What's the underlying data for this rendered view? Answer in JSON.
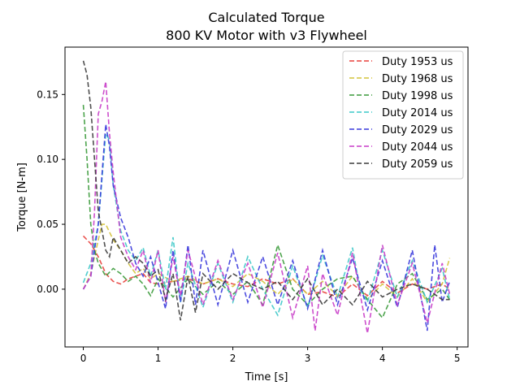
{
  "chart_data": {
    "type": "line",
    "title": "Calculated Torque",
    "subtitle": "800 KV Motor with v3 Flywheel",
    "xlabel": "Time [s]",
    "ylabel": "Torque [N-m]",
    "xlim": [
      -0.245,
      5.145
    ],
    "ylim": [
      -0.0445,
      0.1865
    ],
    "xticks": [
      0,
      1,
      2,
      3,
      4,
      5
    ],
    "xtick_labels": [
      "0",
      "1",
      "2",
      "3",
      "4",
      "5"
    ],
    "yticks": [
      0.0,
      0.05,
      0.1,
      0.15
    ],
    "ytick_labels": [
      "0.00",
      "0.05",
      "0.10",
      "0.15"
    ],
    "grid": false,
    "legend_position": "top-right",
    "line_style": "dashed",
    "series": [
      {
        "name": "Duty 1953 us",
        "color": "#e8403c",
        "x": [
          0.0,
          0.1,
          0.2,
          0.3,
          0.4,
          0.5,
          0.6,
          0.7,
          0.8,
          0.9,
          1.0,
          1.2,
          1.4,
          1.6,
          1.8,
          2.0,
          2.2,
          2.4,
          2.6,
          2.8,
          3.0,
          3.2,
          3.4,
          3.6,
          3.8,
          4.0,
          4.2,
          4.4,
          4.6,
          4.8,
          4.9
        ],
        "y": [
          0.041,
          0.035,
          0.025,
          0.012,
          0.006,
          0.004,
          0.008,
          0.01,
          0.012,
          0.005,
          0.004,
          0.006,
          0.008,
          0.004,
          0.008,
          0.004,
          0.002,
          0.008,
          0.004,
          0.008,
          -0.004,
          -0.002,
          -0.006,
          0.004,
          -0.005,
          0.006,
          -0.003,
          0.004,
          0.0,
          0.004,
          0.0
        ]
      },
      {
        "name": "Duty 1968 us",
        "color": "#d4c33c",
        "x": [
          0.0,
          0.1,
          0.2,
          0.25,
          0.3,
          0.4,
          0.5,
          0.6,
          0.7,
          0.8,
          0.9,
          1.0,
          1.2,
          1.4,
          1.6,
          1.8,
          2.0,
          2.2,
          2.4,
          2.6,
          2.8,
          3.0,
          3.2,
          3.4,
          3.6,
          3.8,
          4.0,
          4.2,
          4.4,
          4.6,
          4.8,
          4.9
        ],
        "y": [
          0.0,
          0.012,
          0.038,
          0.05,
          0.05,
          0.038,
          0.03,
          0.02,
          0.012,
          0.016,
          0.008,
          0.012,
          0.006,
          0.01,
          0.004,
          0.008,
          0.002,
          0.012,
          0.006,
          -0.004,
          0.008,
          -0.004,
          0.006,
          -0.005,
          0.01,
          -0.008,
          0.004,
          -0.006,
          0.008,
          -0.01,
          0.004,
          0.024
        ]
      },
      {
        "name": "Duty 1998 us",
        "color": "#3a9a3a",
        "x": [
          0.0,
          0.05,
          0.1,
          0.15,
          0.2,
          0.3,
          0.4,
          0.5,
          0.6,
          0.7,
          0.8,
          0.9,
          1.0,
          1.2,
          1.4,
          1.6,
          1.8,
          2.0,
          2.2,
          2.4,
          2.6,
          2.8,
          3.0,
          3.2,
          3.4,
          3.6,
          3.8,
          4.0,
          4.2,
          4.4,
          4.6,
          4.8,
          4.9
        ],
        "y": [
          0.142,
          0.1,
          0.05,
          0.03,
          0.02,
          0.01,
          0.016,
          0.012,
          0.006,
          0.01,
          0.004,
          -0.005,
          0.008,
          -0.006,
          0.008,
          -0.004,
          0.006,
          -0.004,
          0.006,
          -0.012,
          0.034,
          0.0,
          -0.012,
          0.0,
          0.008,
          0.01,
          -0.008,
          -0.022,
          0.004,
          0.012,
          -0.008,
          0.0,
          -0.008
        ]
      },
      {
        "name": "Duty 2014 us",
        "color": "#3cc8c8",
        "x": [
          0.0,
          0.1,
          0.2,
          0.3,
          0.35,
          0.4,
          0.5,
          0.6,
          0.7,
          0.8,
          0.9,
          1.0,
          1.1,
          1.2,
          1.3,
          1.4,
          1.6,
          1.8,
          2.0,
          2.2,
          2.4,
          2.6,
          2.8,
          3.0,
          3.2,
          3.4,
          3.6,
          3.7,
          3.8,
          4.0,
          4.2,
          4.4,
          4.6,
          4.8,
          4.9
        ],
        "y": [
          0.005,
          0.02,
          0.05,
          0.12,
          0.115,
          0.08,
          0.045,
          0.03,
          0.022,
          0.032,
          0.01,
          0.03,
          0.0,
          0.04,
          -0.01,
          0.02,
          -0.014,
          0.02,
          -0.01,
          0.025,
          0.0,
          -0.02,
          0.018,
          -0.014,
          0.026,
          -0.006,
          0.032,
          0.0,
          -0.01,
          0.03,
          -0.006,
          0.022,
          -0.01,
          0.016,
          -0.008
        ]
      },
      {
        "name": "Duty 2029 us",
        "color": "#3838dc",
        "x": [
          0.0,
          0.1,
          0.2,
          0.3,
          0.35,
          0.4,
          0.5,
          0.6,
          0.7,
          0.8,
          0.9,
          1.0,
          1.1,
          1.2,
          1.3,
          1.4,
          1.5,
          1.6,
          1.8,
          2.0,
          2.2,
          2.4,
          2.6,
          2.8,
          3.0,
          3.2,
          3.4,
          3.6,
          3.8,
          4.0,
          4.2,
          4.4,
          4.6,
          4.7,
          4.8,
          4.9
        ],
        "y": [
          0.0,
          0.01,
          0.05,
          0.127,
          0.11,
          0.08,
          0.055,
          0.04,
          0.02,
          0.01,
          0.025,
          0.005,
          -0.015,
          0.03,
          -0.01,
          0.034,
          -0.012,
          0.03,
          -0.012,
          0.03,
          -0.01,
          0.025,
          -0.012,
          0.022,
          -0.015,
          0.03,
          -0.012,
          0.024,
          -0.016,
          0.022,
          -0.014,
          0.03,
          -0.032,
          0.034,
          -0.01,
          0.006
        ]
      },
      {
        "name": "Duty 2044 us",
        "color": "#c83cc8",
        "x": [
          0.0,
          0.1,
          0.15,
          0.2,
          0.25,
          0.3,
          0.35,
          0.4,
          0.5,
          0.6,
          0.7,
          0.8,
          0.9,
          1.0,
          1.1,
          1.2,
          1.3,
          1.4,
          1.6,
          1.8,
          2.0,
          2.2,
          2.4,
          2.6,
          2.8,
          3.0,
          3.1,
          3.2,
          3.4,
          3.6,
          3.8,
          4.0,
          4.2,
          4.4,
          4.6,
          4.8,
          4.9
        ],
        "y": [
          0.0,
          0.01,
          0.06,
          0.135,
          0.145,
          0.16,
          0.12,
          0.09,
          0.04,
          0.025,
          0.015,
          0.03,
          0.005,
          0.03,
          -0.01,
          0.025,
          -0.005,
          0.03,
          -0.012,
          0.022,
          -0.008,
          0.02,
          -0.014,
          0.028,
          -0.022,
          0.018,
          -0.032,
          0.012,
          -0.02,
          0.028,
          -0.034,
          0.034,
          -0.012,
          0.02,
          -0.026,
          0.02,
          -0.004
        ]
      },
      {
        "name": "Duty 2059 us",
        "color": "#3c3c3c",
        "x": [
          0.0,
          0.05,
          0.1,
          0.15,
          0.2,
          0.3,
          0.35,
          0.4,
          0.5,
          0.6,
          0.7,
          0.8,
          0.9,
          1.0,
          1.1,
          1.2,
          1.3,
          1.4,
          1.5,
          1.6,
          1.8,
          2.0,
          2.2,
          2.4,
          2.6,
          2.8,
          3.0,
          3.2,
          3.4,
          3.6,
          3.8,
          4.0,
          4.2,
          4.4,
          4.6,
          4.8,
          4.9
        ],
        "y": [
          0.176,
          0.165,
          0.14,
          0.1,
          0.06,
          0.03,
          0.025,
          0.04,
          0.03,
          0.02,
          0.025,
          0.02,
          0.01,
          0.015,
          -0.008,
          0.012,
          -0.024,
          0.01,
          -0.018,
          0.012,
          0.0,
          0.012,
          0.005,
          0.0,
          0.006,
          -0.008,
          0.008,
          -0.012,
          0.0,
          -0.012,
          0.006,
          -0.006,
          0.0,
          0.004,
          0.0,
          -0.008,
          -0.008
        ]
      }
    ]
  }
}
